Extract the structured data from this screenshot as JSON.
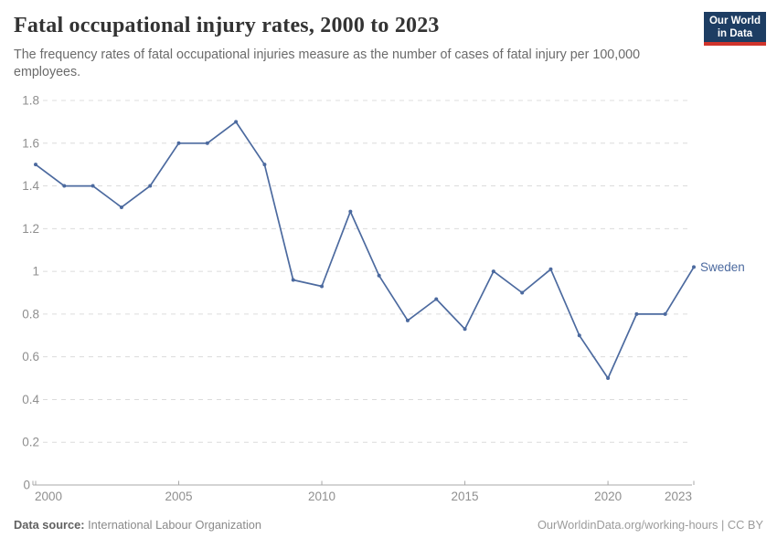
{
  "header": {
    "title": "Fatal occupational injury rates, 2000 to 2023",
    "subtitle": "The frequency rates of fatal occupational injuries measure as the number of cases of fatal injury per 100,000 employees.",
    "logo": {
      "line1": "Our World",
      "line2": "in Data",
      "background": "#1d3d63",
      "stripe": "#d0342c"
    }
  },
  "chart_data": {
    "type": "line",
    "title": "Fatal occupational injury rates, 2000 to 2023",
    "xlabel": "",
    "ylabel": "",
    "x": [
      2000,
      2001,
      2002,
      2003,
      2004,
      2005,
      2006,
      2007,
      2008,
      2009,
      2010,
      2011,
      2012,
      2013,
      2014,
      2015,
      2016,
      2017,
      2018,
      2019,
      2020,
      2021,
      2022,
      2023
    ],
    "series": [
      {
        "name": "Sweden",
        "color": "#4C6A9F",
        "values": [
          1.5,
          1.4,
          1.4,
          1.3,
          1.4,
          1.6,
          1.6,
          1.7,
          1.5,
          0.96,
          0.93,
          1.28,
          0.98,
          0.77,
          0.87,
          0.73,
          1.0,
          0.9,
          1.01,
          0.7,
          0.5,
          0.8,
          0.8,
          1.02
        ]
      }
    ],
    "xlim": [
      2000,
      2023
    ],
    "ylim": [
      0,
      1.8
    ],
    "x_ticks": [
      2000,
      2005,
      2010,
      2015,
      2020,
      2023
    ],
    "y_ticks": [
      0,
      0.2,
      0.4,
      0.6,
      0.8,
      1,
      1.2,
      1.4,
      1.6,
      1.8
    ],
    "grid": "horizontal-dashed",
    "legend": "end-of-line-label",
    "end_label": "Sweden"
  },
  "footer": {
    "source_label": "Data source:",
    "source_value": "International Labour Organization",
    "attribution": "OurWorldinData.org/working-hours | CC BY"
  }
}
